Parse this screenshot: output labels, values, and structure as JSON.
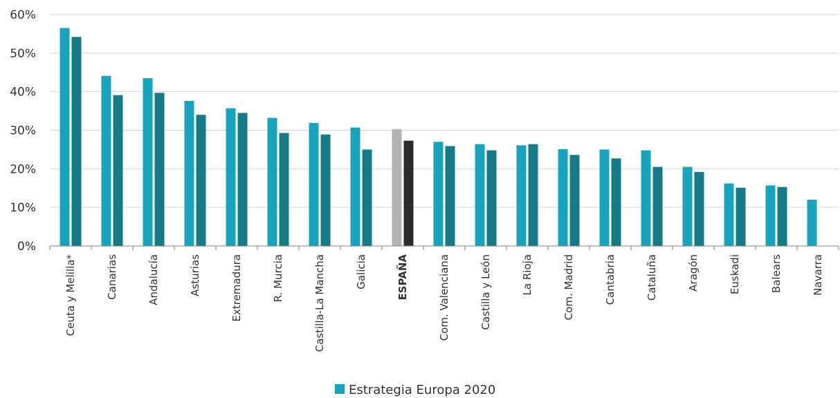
{
  "chart_data": {
    "type": "bar",
    "categories": [
      "Ceuta y Melilla*",
      "Canarias",
      "Andalucía",
      "Asturias",
      "Extremadura",
      "R. Murcia",
      "Castilla-La Mancha",
      "Galicia",
      "ESPAÑA",
      "Com. Valenciana",
      "Castilla y León",
      "La Rioja",
      "Com. Madrid",
      "Cantabria",
      "Cataluña",
      "Aragón",
      "Euskadi",
      "Balears",
      "Navarra"
    ],
    "highlight_category": "ESPAÑA",
    "series": [
      {
        "name": "Estrategia Europa 2020",
        "color": "#1aa3bd",
        "highlight_color": "#b3b3b3",
        "values": [
          56.5,
          44.1,
          43.5,
          37.6,
          35.7,
          33.2,
          31.9,
          30.7,
          30.3,
          27.0,
          26.4,
          26.1,
          25.1,
          25.0,
          24.8,
          20.5,
          16.2,
          15.7,
          12.0
        ]
      },
      {
        "name": "",
        "color": "#177a87",
        "highlight_color": "#2a2d30",
        "values": [
          54.2,
          39.1,
          39.7,
          34.0,
          34.5,
          29.3,
          28.9,
          25.0,
          27.3,
          25.9,
          24.8,
          26.4,
          23.6,
          22.7,
          20.5,
          19.2,
          15.1,
          15.3,
          null
        ]
      }
    ],
    "yticks": [
      "0%",
      "10%",
      "20%",
      "30%",
      "40%",
      "50%",
      "60%"
    ],
    "ylim": [
      0,
      60
    ],
    "grid": true,
    "legend_position": "bottom",
    "legend_label": "Estrategia Europa 2020",
    "grid_color": "#d9d9d9",
    "axis_color": "#808080"
  }
}
